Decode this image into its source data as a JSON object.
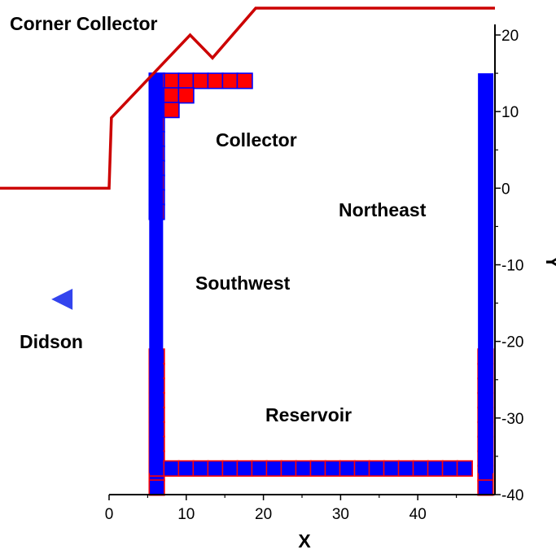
{
  "chart_data": {
    "type": "diagram",
    "xlabel": "X",
    "ylabel": "Y",
    "xlim": [
      0,
      50
    ],
    "ylim": [
      -40,
      22
    ],
    "x_ticks": [
      "0",
      "10",
      "20",
      "30",
      "40"
    ],
    "y_ticks": [
      "20",
      "10",
      "0",
      "-10",
      "-20",
      "-30",
      "-40"
    ],
    "x_tick_values": [
      0,
      10,
      20,
      30,
      40
    ],
    "y_tick_values": [
      20,
      10,
      0,
      -10,
      -20,
      -30,
      -40
    ],
    "labels": {
      "corner_collector": "Corner Collector",
      "collector": "Collector",
      "northeast": "Northeast",
      "southwest": "Southwest",
      "didson": "Didson",
      "reservoir": "Reservoir"
    },
    "colors": {
      "wall": "#0000ff",
      "cell_fill": "#ff0000",
      "cell_edge": "#0000ff",
      "bottom_cell_fill": "#0000ff",
      "bottom_cell_edge": "#ff0000",
      "boundary_line": "#cc0000",
      "didson_marker": "#3344ee"
    },
    "boundary_line": [
      [
        -16,
        0
      ],
      [
        0,
        0
      ],
      [
        0.3,
        9.2
      ],
      [
        10.5,
        20
      ],
      [
        13.4,
        17
      ],
      [
        19,
        23.5
      ],
      [
        50,
        23.5
      ]
    ],
    "didson_marker": [
      -6,
      -14.5
    ],
    "walls": [
      {
        "name": "west-wall",
        "x": [
          5.2,
          7
        ],
        "y": [
          -37.2,
          15
        ]
      },
      {
        "name": "east-wall",
        "x": [
          47.8,
          49.8
        ],
        "y": [
          -37.2,
          15
        ]
      }
    ],
    "grid_regions": {
      "collector_top_row": {
        "x0": 5.2,
        "y0": 15,
        "cols": 7,
        "rows": 1
      },
      "collector_left_col": {
        "x0": 5.2,
        "y0": 15,
        "cols": 1,
        "rows": 10
      },
      "collector_corner": [
        [
          2,
          1
        ],
        [
          3,
          1
        ],
        [
          2,
          2
        ]
      ],
      "reservoir_left_col": {
        "x0": 5.2,
        "y0": -21,
        "cols": 1,
        "rows": 10
      },
      "reservoir_right_col": {
        "x0": 47.8,
        "y0": -21,
        "cols": 1,
        "rows": 10
      },
      "reservoir_bottom_row": {
        "x0": 5.2,
        "y0": -35.6,
        "cols": 22,
        "rows": 1
      }
    }
  }
}
